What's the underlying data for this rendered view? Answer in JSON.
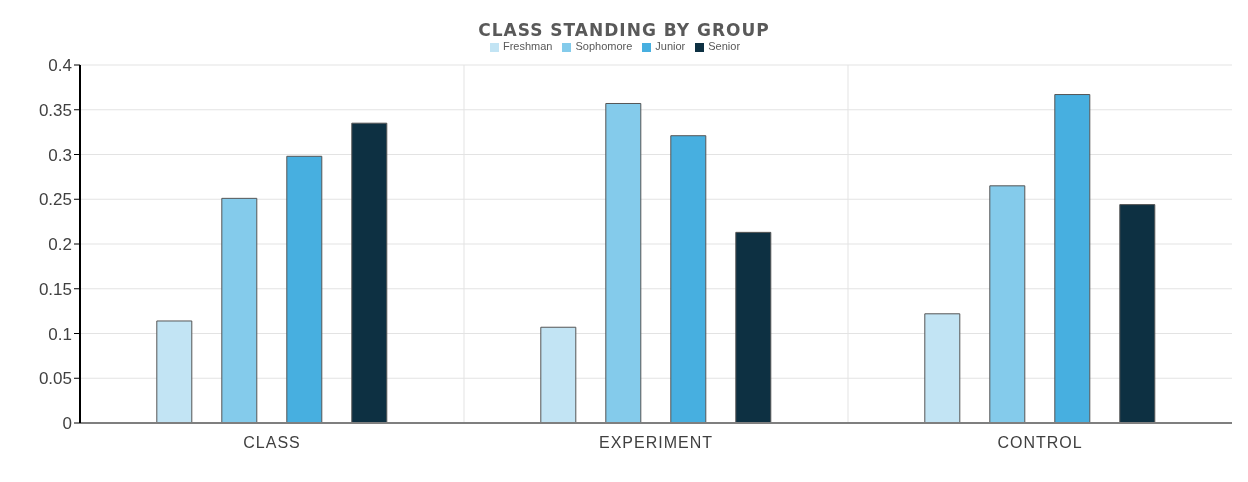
{
  "chart_data": {
    "type": "bar",
    "title": "CLASS STANDING BY GROUP",
    "categories": [
      "CLASS",
      "EXPERIMENT",
      "CONTROL"
    ],
    "series": [
      {
        "name": "Freshman",
        "color": "#c2e4f4",
        "values": [
          0.114,
          0.107,
          0.122
        ]
      },
      {
        "name": "Sophomore",
        "color": "#84cbeb",
        "values": [
          0.251,
          0.357,
          0.265
        ]
      },
      {
        "name": "Junior",
        "color": "#47afe0",
        "values": [
          0.298,
          0.321,
          0.367
        ]
      },
      {
        "name": "Senior",
        "color": "#0d3042",
        "values": [
          0.335,
          0.213,
          0.244
        ]
      }
    ],
    "ylim": [
      0,
      0.4
    ],
    "yticks": [
      0,
      0.05,
      0.1,
      0.15,
      0.2,
      0.25,
      0.3,
      0.35,
      0.4
    ],
    "grid": true,
    "legend": "top"
  }
}
